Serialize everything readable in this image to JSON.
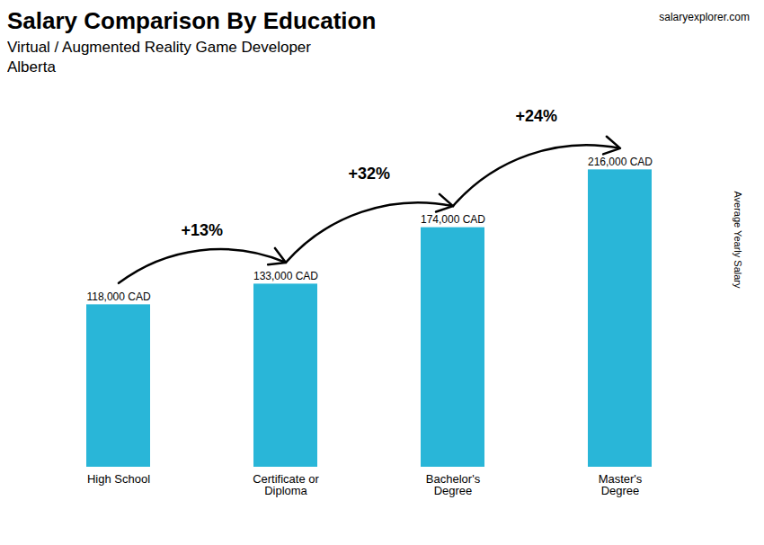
{
  "chart_data": {
    "type": "bar",
    "title": "Salary Comparison By Education",
    "subtitle": "Virtual / Augmented Reality Game Developer",
    "location": "Alberta",
    "source": "salaryexplorer.com",
    "ylabel": "Average Yearly Salary",
    "categories": [
      "High School",
      "Certificate or\nDiploma",
      "Bachelor's\nDegree",
      "Master's\nDegree"
    ],
    "values": [
      118000,
      133000,
      174000,
      216000
    ],
    "value_labels": [
      "118,000 CAD",
      "133,000 CAD",
      "174,000 CAD",
      "216,000 CAD"
    ],
    "data_labels": true,
    "color": "#29b6d8",
    "ylim": [
      0,
      260000
    ],
    "grid": false,
    "tick_labels": "x",
    "annotations": [
      {
        "text": "+13%",
        "from": "High School",
        "to": "Certificate or\nDiploma"
      },
      {
        "text": "+32%",
        "from": "Certificate or\nDiploma",
        "to": "Bachelor's\nDegree"
      },
      {
        "text": "+24%",
        "from": "Bachelor's\nDegree",
        "to": "Master's\nDegree"
      }
    ]
  }
}
